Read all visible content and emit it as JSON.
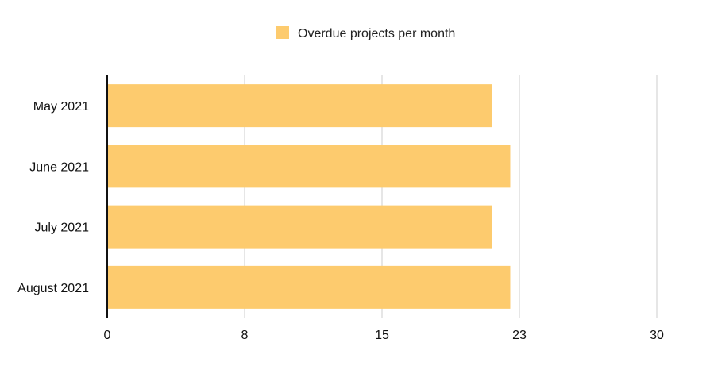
{
  "chart_data": {
    "type": "bar",
    "orientation": "horizontal",
    "categories": [
      "May 2021",
      "June 2021",
      "July 2021",
      "August 2021"
    ],
    "series": [
      {
        "name": "Overdue projects per month",
        "values": [
          21,
          22,
          21,
          22
        ]
      }
    ],
    "xticks": [
      "0",
      "8",
      "15",
      "23",
      "30"
    ],
    "xlim": [
      0,
      30
    ],
    "grid": true,
    "legend_position": "top",
    "colors": {
      "bar": "#fdcb6e",
      "grid": "#cccccc",
      "axis": "#111111"
    }
  }
}
